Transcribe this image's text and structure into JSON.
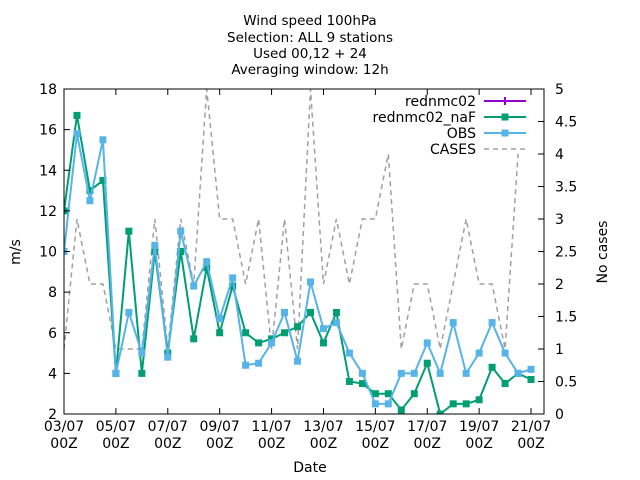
{
  "chart_data": {
    "type": "line",
    "title_lines": [
      "Wind speed 100hPa",
      "Selection: ALL      9 stations",
      "Used 00,12 + 24",
      "Averaging window: 12h"
    ],
    "xlabel": "Date",
    "ylabel": "m/s",
    "y2label": "No cases",
    "xlim": [
      0,
      37
    ],
    "ylim": [
      2,
      18
    ],
    "y2lim": [
      0,
      5
    ],
    "xticks": [
      {
        "x": 0,
        "l1": "03/07",
        "l2": "00Z"
      },
      {
        "x": 4,
        "l1": "05/07",
        "l2": "00Z"
      },
      {
        "x": 8,
        "l1": "07/07",
        "l2": "00Z"
      },
      {
        "x": 12,
        "l1": "09/07",
        "l2": "00Z"
      },
      {
        "x": 16,
        "l1": "11/07",
        "l2": "00Z"
      },
      {
        "x": 20,
        "l1": "13/07",
        "l2": "00Z"
      },
      {
        "x": 24,
        "l1": "15/07",
        "l2": "00Z"
      },
      {
        "x": 28,
        "l1": "17/07",
        "l2": "00Z"
      },
      {
        "x": 32,
        "l1": "19/07",
        "l2": "00Z"
      },
      {
        "x": 36,
        "l1": "21/07",
        "l2": "00Z"
      }
    ],
    "yticks": [
      "2",
      "4",
      "6",
      "8",
      "10",
      "12",
      "14",
      "16",
      "18"
    ],
    "y2ticks": [
      "0",
      "0.5",
      "1",
      "1.5",
      "2",
      "2.5",
      "3",
      "3.5",
      "4",
      "4.5",
      "5"
    ],
    "legend_position": "top-right",
    "series": [
      {
        "name": "rednmc02",
        "axis": "y",
        "color": "#9400d3",
        "marker": "plus",
        "dash": false,
        "x": [],
        "y": []
      },
      {
        "name": "rednmc02_naF",
        "axis": "y",
        "color": "#009e73",
        "marker": "square",
        "dash": false,
        "x": [
          0,
          1,
          2,
          3,
          4,
          5,
          6,
          7,
          8,
          9,
          10,
          11,
          12,
          13,
          14,
          15,
          16,
          17,
          18,
          19,
          20,
          21,
          22,
          23,
          24,
          25,
          26,
          27,
          28,
          29,
          30,
          31,
          32,
          33,
          34,
          35,
          36,
          37
        ],
        "y": [
          12.0,
          16.7,
          13.0,
          13.5,
          4.0,
          11.0,
          4.0,
          10.0,
          5.0,
          10.0,
          5.7,
          9.2,
          6.0,
          8.3,
          6.0,
          5.5,
          5.7,
          6.0,
          6.3,
          7.0,
          5.5,
          7.0,
          3.6,
          3.5,
          3.0,
          3.0,
          2.2,
          3.0,
          4.5,
          2.0,
          2.5,
          2.5,
          2.7,
          4.3,
          3.5,
          4.0,
          3.7,
          null
        ]
      },
      {
        "name": "OBS",
        "axis": "y",
        "color": "#56b4e9",
        "marker": "square",
        "dash": false,
        "x": [
          0,
          1,
          2,
          3,
          4,
          5,
          6,
          7,
          8,
          9,
          10,
          11,
          12,
          13,
          14,
          15,
          16,
          17,
          18,
          19,
          20,
          21,
          22,
          23,
          24,
          25,
          26,
          27,
          28,
          29,
          30,
          31,
          32,
          33,
          34,
          35,
          36,
          37
        ],
        "y": [
          10.0,
          15.8,
          12.5,
          15.5,
          4.0,
          7.0,
          5.0,
          10.3,
          4.8,
          11.0,
          8.3,
          9.5,
          6.7,
          8.7,
          4.4,
          4.5,
          5.5,
          7.0,
          4.6,
          8.5,
          6.2,
          6.5,
          5.0,
          4.0,
          2.5,
          2.5,
          4.0,
          4.0,
          5.5,
          4.0,
          6.5,
          4.0,
          5.0,
          6.5,
          5.0,
          4.0,
          4.2,
          null
        ]
      },
      {
        "name": "CASES",
        "axis": "y2",
        "color": "#a0a0a0",
        "marker": "none",
        "dash": true,
        "x": [
          0,
          1,
          2,
          3,
          4,
          5,
          6,
          7,
          8,
          9,
          10,
          11,
          12,
          13,
          14,
          15,
          16,
          17,
          18,
          19,
          20,
          21,
          22,
          23,
          24,
          25,
          26,
          27,
          28,
          29,
          30,
          31,
          32,
          33,
          34,
          35,
          36,
          37
        ],
        "y": [
          1.0,
          3.0,
          2.0,
          2.0,
          1.0,
          1.0,
          1.0,
          3.0,
          1.0,
          3.0,
          2.0,
          5.0,
          3.0,
          3.0,
          2.0,
          3.0,
          1.0,
          3.0,
          1.0,
          5.0,
          2.0,
          3.0,
          2.0,
          3.0,
          3.0,
          4.0,
          1.0,
          2.0,
          2.0,
          1.0,
          2.0,
          3.0,
          2.0,
          2.0,
          1.0,
          4.0,
          null,
          null
        ]
      }
    ]
  }
}
